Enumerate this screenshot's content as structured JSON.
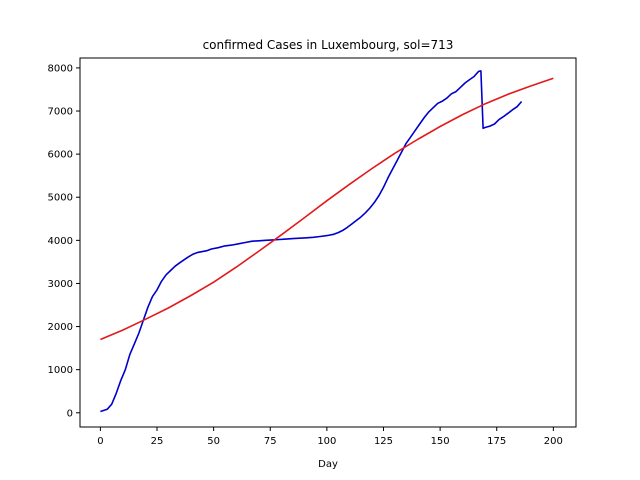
{
  "chart_data": {
    "type": "line",
    "title": "confirmed Cases in Luxembourg, sol=713",
    "xlabel": "Day",
    "ylabel": "",
    "xlim": [
      -9,
      210
    ],
    "ylim": [
      -330,
      8230
    ],
    "xticks": [
      0,
      25,
      50,
      75,
      100,
      125,
      150,
      175,
      200
    ],
    "yticks": [
      0,
      1000,
      2000,
      3000,
      4000,
      5000,
      6000,
      7000,
      8000
    ],
    "grid": false,
    "legend": "none",
    "series": [
      {
        "color": "#0000cc",
        "x": [
          0,
          3,
          5,
          7,
          9,
          11,
          13,
          15,
          17,
          19,
          21,
          23,
          25,
          27,
          29,
          31,
          33,
          35,
          37,
          39,
          41,
          43,
          45,
          47,
          49,
          52,
          55,
          58,
          61,
          64,
          67,
          70,
          73,
          76,
          79,
          82,
          85,
          88,
          91,
          94,
          97,
          100,
          103,
          105,
          107,
          109,
          111,
          113,
          115,
          117,
          119,
          121,
          123,
          125,
          127,
          129,
          131,
          133,
          135,
          137,
          139,
          141,
          143,
          145,
          147,
          149,
          151,
          153,
          155,
          157,
          159,
          161,
          163,
          165,
          166,
          167,
          168,
          169,
          170,
          172,
          174,
          176,
          178,
          180,
          182,
          184,
          186
        ],
        "y": [
          30,
          80,
          200,
          450,
          750,
          1000,
          1350,
          1600,
          1850,
          2150,
          2450,
          2700,
          2850,
          3050,
          3200,
          3300,
          3400,
          3480,
          3550,
          3620,
          3680,
          3720,
          3740,
          3760,
          3800,
          3830,
          3870,
          3890,
          3920,
          3950,
          3980,
          3990,
          4000,
          4010,
          4020,
          4030,
          4040,
          4050,
          4060,
          4070,
          4090,
          4110,
          4140,
          4180,
          4230,
          4300,
          4380,
          4460,
          4540,
          4640,
          4750,
          4880,
          5040,
          5230,
          5450,
          5650,
          5850,
          6050,
          6250,
          6400,
          6550,
          6700,
          6850,
          6980,
          7080,
          7180,
          7230,
          7300,
          7400,
          7450,
          7550,
          7650,
          7730,
          7800,
          7860,
          7920,
          7930,
          6600,
          6620,
          6650,
          6700,
          6800,
          6870,
          6950,
          7030,
          7100,
          7220
        ]
      },
      {
        "color": "#e31a1c",
        "x": [
          0,
          10,
          20,
          30,
          40,
          50,
          60,
          70,
          80,
          90,
          100,
          110,
          120,
          130,
          140,
          150,
          160,
          170,
          180,
          190,
          200
        ],
        "y": [
          1700,
          1920,
          2170,
          2430,
          2720,
          3030,
          3380,
          3750,
          4130,
          4520,
          4920,
          5300,
          5670,
          6020,
          6340,
          6640,
          6920,
          7170,
          7390,
          7580,
          7760
        ]
      }
    ]
  }
}
